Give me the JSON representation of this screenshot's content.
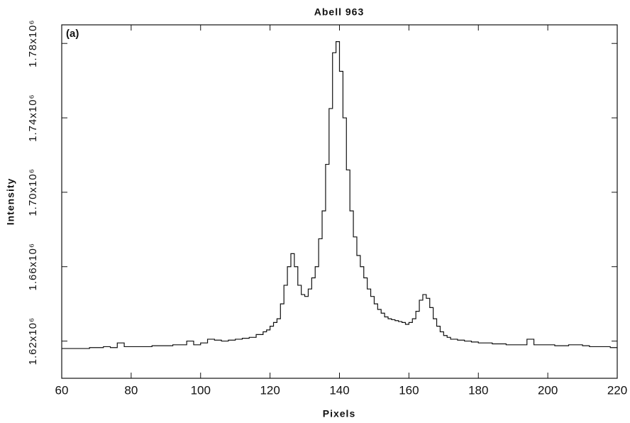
{
  "chart_data": {
    "type": "step",
    "title": "Abell 963",
    "annotation": "(a)",
    "xlabel": "Pixels",
    "ylabel": "Intensity",
    "color": "#111111",
    "xlim": [
      60,
      220
    ],
    "xticks": [
      60,
      80,
      100,
      120,
      140,
      160,
      180,
      200,
      220
    ],
    "ylim": [
      1600000,
      1790000
    ],
    "yticks": [
      {
        "value": 1620000,
        "label": "1.62x10⁶"
      },
      {
        "value": 1660000,
        "label": "1.66x10⁶"
      },
      {
        "value": 1700000,
        "label": "1.70x10⁶"
      },
      {
        "value": 1740000,
        "label": "1.74x10⁶"
      },
      {
        "value": 1780000,
        "label": "1.78x10⁶"
      }
    ],
    "x": [
      60,
      62,
      64,
      66,
      68,
      70,
      72,
      74,
      76,
      78,
      80,
      82,
      84,
      86,
      88,
      90,
      92,
      94,
      96,
      98,
      100,
      102,
      104,
      106,
      108,
      110,
      112,
      114,
      116,
      118,
      119,
      120,
      121,
      122,
      123,
      124,
      125,
      126,
      127,
      128,
      129,
      130,
      131,
      132,
      133,
      134,
      135,
      136,
      137,
      138,
      139,
      140,
      141,
      142,
      143,
      144,
      145,
      146,
      147,
      148,
      149,
      150,
      151,
      152,
      153,
      154,
      155,
      156,
      157,
      158,
      159,
      160,
      161,
      162,
      163,
      164,
      165,
      166,
      167,
      168,
      169,
      170,
      171,
      172,
      174,
      176,
      178,
      180,
      182,
      184,
      186,
      188,
      190,
      192,
      194,
      196,
      198,
      200,
      202,
      204,
      206,
      208,
      210,
      212,
      214,
      216,
      218
    ],
    "values": [
      1616000,
      1616000,
      1616000,
      1616000,
      1616500,
      1616500,
      1617000,
      1616500,
      1619000,
      1617000,
      1617000,
      1617000,
      1617000,
      1617500,
      1617500,
      1617500,
      1618000,
      1618000,
      1620000,
      1618000,
      1619000,
      1621000,
      1620500,
      1620000,
      1620500,
      1621000,
      1621500,
      1622000,
      1623500,
      1625000,
      1626000,
      1628000,
      1630000,
      1632000,
      1640000,
      1650000,
      1660000,
      1667000,
      1660000,
      1650000,
      1645000,
      1644000,
      1648000,
      1654000,
      1660000,
      1675000,
      1690000,
      1715000,
      1745000,
      1775000,
      1781000,
      1765000,
      1740000,
      1712000,
      1690000,
      1676000,
      1666000,
      1660000,
      1654000,
      1648000,
      1644000,
      1640000,
      1637000,
      1635000,
      1633000,
      1632000,
      1631500,
      1631000,
      1630500,
      1630000,
      1629000,
      1630000,
      1632000,
      1636000,
      1642000,
      1645000,
      1643000,
      1638000,
      1632000,
      1628000,
      1625000,
      1623000,
      1622000,
      1621000,
      1620500,
      1620000,
      1619500,
      1619000,
      1619000,
      1618500,
      1618500,
      1618000,
      1618000,
      1618000,
      1621000,
      1618000,
      1618000,
      1618000,
      1617500,
      1617500,
      1618000,
      1618000,
      1617500,
      1617000,
      1617000,
      1617000,
      1616500
    ]
  }
}
